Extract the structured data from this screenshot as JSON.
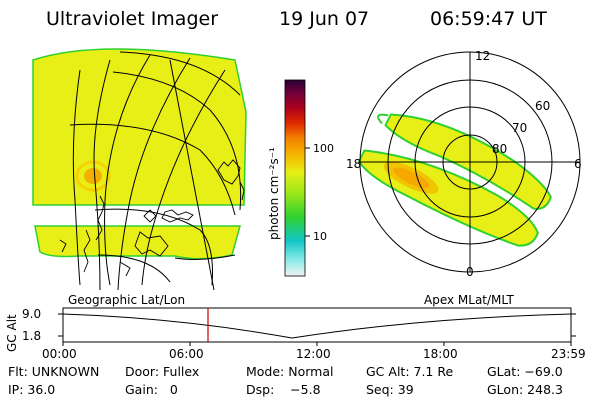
{
  "header": {
    "instrument": "Ultraviolet Imager",
    "date": "19 Jun 07",
    "time": "06:59:47 UT"
  },
  "colorbar": {
    "label": "photon cm⁻²s⁻¹",
    "ticks": [
      "100",
      "10"
    ],
    "palette": [
      "#f2f2f2",
      "#7fe8e6",
      "#12c6c6",
      "#2fd02f",
      "#9be61b",
      "#e6ef16",
      "#f6b400",
      "#f38400",
      "#de2a00",
      "#a9001c",
      "#74003a",
      "#2a0038"
    ]
  },
  "geo_panel": {
    "caption": "Geographic Lat/Lon"
  },
  "polar_panel": {
    "caption": "Apex MLat/MLT",
    "mlt_labels": {
      "top": "12",
      "left": "18",
      "right": "6",
      "bottom": "0"
    },
    "lat_labels": [
      "60",
      "70",
      "80"
    ]
  },
  "altitude_plot": {
    "ylabel": "GC Alt",
    "y_ticks": [
      "9.0",
      "1.8"
    ],
    "x_ticks": [
      "00:00",
      "06:00",
      "12:00",
      "18:00",
      "23:59"
    ],
    "current_time_marker": "06:59"
  },
  "status": {
    "flt": "Flt: UNKNOWN",
    "door": "Door: Fullex",
    "mode": "Mode: Normal",
    "gc_alt": "GC Alt: 7.1 Re",
    "glat": "GLat: −69.0",
    "ip": "IP: 36.0",
    "gain": "Gain:   0",
    "dsp": "Dsp:    −5.8",
    "seq": "Seq: 39",
    "glon": "GLon: 248.3"
  }
}
